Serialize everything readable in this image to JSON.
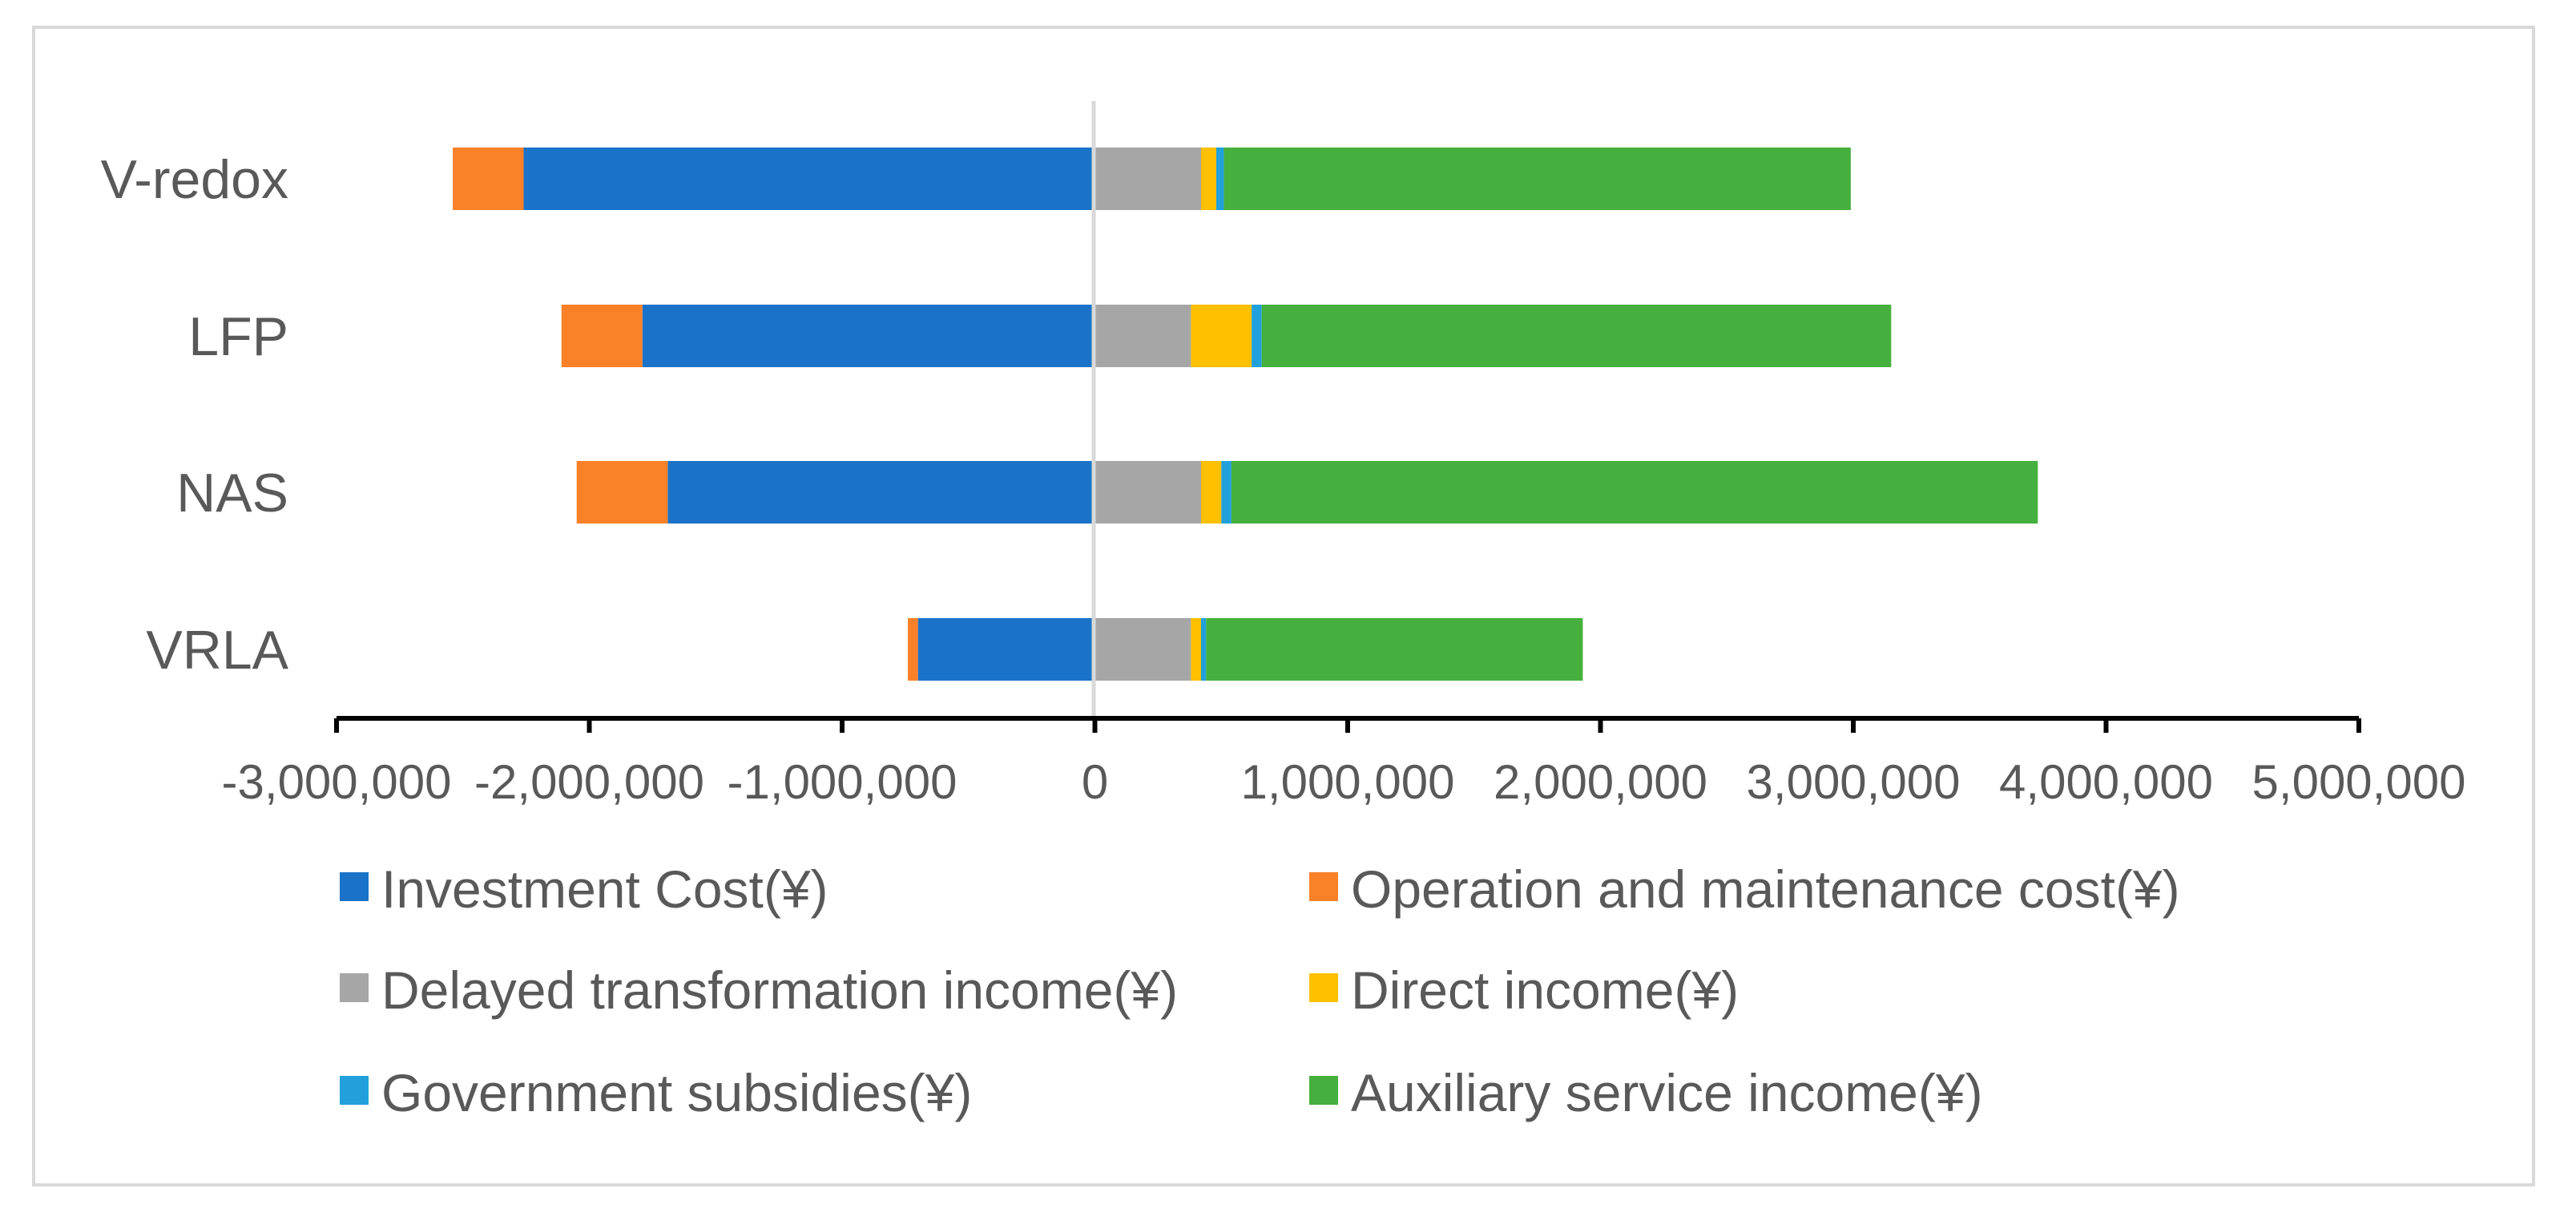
{
  "chart_data": {
    "type": "bar",
    "orientation": "horizontal",
    "stacked": true,
    "title": "",
    "xlabel": "",
    "ylabel": "",
    "xlim": [
      -3000000,
      5000000
    ],
    "x_ticks": [
      -3000000,
      -2000000,
      -1000000,
      0,
      1000000,
      2000000,
      3000000,
      4000000,
      5000000
    ],
    "x_tick_labels": [
      "-3,000,000",
      "-2,000,000",
      "-1,000,000",
      "0",
      "1,000,000",
      "2,000,000",
      "3,000,000",
      "4,000,000",
      "5,000,000"
    ],
    "categories": [
      "VRLA",
      "NAS",
      "LFP",
      "V-redox"
    ],
    "grid": false,
    "legend_position": "bottom",
    "series": [
      {
        "name": "Investment Cost(¥)",
        "color": "#1a73c8",
        "values": [
          -700000,
          -1690000,
          -1790000,
          -2260000
        ]
      },
      {
        "name": "Operation and maintenance cost(¥)",
        "color": "#fb8128",
        "values": [
          -40000,
          -360000,
          -320000,
          -280000
        ]
      },
      {
        "name": "Delayed transformation income(¥)",
        "color": "#a6a6a6",
        "values": [
          380000,
          420000,
          380000,
          420000
        ]
      },
      {
        "name": "Direct income(¥)",
        "color": "#ffc000",
        "values": [
          40000,
          80000,
          240000,
          60000
        ]
      },
      {
        "name": "Government subsidies(¥)",
        "color": "#21a0db",
        "values": [
          20000,
          40000,
          40000,
          30000
        ]
      },
      {
        "name": "Auxiliary service income(¥)",
        "color": "#45b03d",
        "values": [
          1490000,
          3190000,
          2490000,
          2480000
        ]
      }
    ]
  }
}
